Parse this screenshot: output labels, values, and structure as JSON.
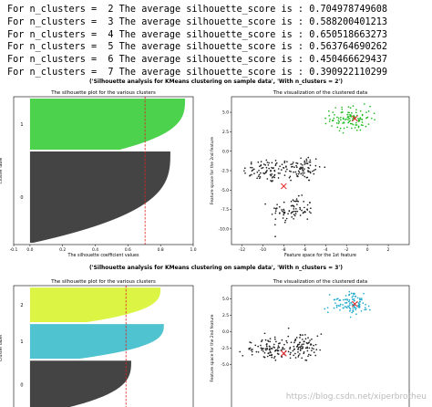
{
  "log_lines": [
    "For n_clusters =  2 The average silhouette_score is : 0.704978749608",
    "For n_clusters =  3 The average silhouette_score is : 0.588200401213",
    "For n_clusters =  4 The average silhouette_score is : 0.650518663273",
    "For n_clusters =  5 The average silhouette_score is : 0.563764690262",
    "For n_clusters =  6 The average silhouette_score is : 0.450466629437",
    "For n_clusters =  7 The average silhouette_score is : 0.390922110299"
  ],
  "watermark": "https://blog.csdn.net/xiperbrotheu",
  "chart_data": [
    {
      "type": "bar",
      "subtype": "silhouette",
      "suptitle": "('Silhouette analysis for KMeans clustering on sample data', 'With n_clusters = 2')",
      "title": "The silhouette plot for the various clusters",
      "xlabel": "The silhouette coefficient values",
      "ylabel": "Cluster label",
      "xlim": [
        -0.1,
        1.0
      ],
      "xticks": [
        -0.1,
        0.0,
        0.2,
        0.4,
        0.6,
        0.8,
        1.0
      ],
      "xtick_labels": [
        "-0.1",
        "0.0",
        "0.2",
        "0.4",
        "0.6",
        "0.8",
        "1.0"
      ],
      "average_score": 0.705,
      "clusters": [
        {
          "label": "0",
          "color": "#444444",
          "size": 500,
          "max": 0.86,
          "min": 0.02
        },
        {
          "label": "1",
          "color": "#4cd24c",
          "size": 280,
          "max": 0.95,
          "min": 0.55
        }
      ]
    },
    {
      "type": "scatter",
      "title": "The visualization of the clustered data",
      "xlabel": "Feature space for the 1st feature",
      "ylabel": "Feature space for the 2nd feature",
      "xlim": [
        -13,
        4
      ],
      "ylim": [
        -12,
        7
      ],
      "xticks": [
        -12,
        -10,
        -8,
        -6,
        -4,
        -2,
        0,
        2
      ],
      "yticks": [
        -10.0,
        -7.5,
        -5.0,
        -2.5,
        0.0,
        2.5,
        5.0
      ],
      "ytick_labels": [
        "-10.0",
        "-7.5",
        "-5.0",
        "-2.5",
        "0.0",
        "2.5",
        "5.0"
      ],
      "groups": [
        {
          "name": "",
          "color": "#222222",
          "n": 240,
          "blobs": [
            {
              "cx": -9.5,
              "cy": -2.5,
              "sx": 1.5,
              "sy": 1.0
            },
            {
              "cx": -6.3,
              "cy": -2.2,
              "sx": 1.2,
              "sy": 1.1
            },
            {
              "cx": -7.2,
              "cy": -7.6,
              "sx": 1.3,
              "sy": 1.0
            }
          ]
        },
        {
          "name": "",
          "color": "#22bb22",
          "n": 110,
          "blobs": [
            {
              "cx": -1.6,
              "cy": 4.2,
              "sx": 1.2,
              "sy": 1.0
            }
          ]
        }
      ],
      "centers": [
        {
          "x": -8.0,
          "y": -4.5
        },
        {
          "x": -1.2,
          "y": 4.2
        }
      ]
    },
    {
      "type": "bar",
      "subtype": "silhouette",
      "suptitle": "('Silhouette analysis for KMeans clustering on sample data', 'With n_clusters = 3')",
      "title": "The silhouette plot for the various clusters",
      "xlabel": "",
      "ylabel": "Cluster label",
      "xlim": [
        -0.1,
        1.0
      ],
      "average_score": 0.588,
      "clusters": [
        {
          "label": "0",
          "color": "#444444",
          "size": 250,
          "max": 0.62,
          "min": 0.2
        },
        {
          "label": "1",
          "color": "#4fc3d0",
          "size": 180,
          "max": 0.82,
          "min": 0.3
        },
        {
          "label": "2",
          "color": "#dcf545",
          "size": 180,
          "max": 0.8,
          "min": 0.35
        }
      ]
    },
    {
      "type": "scatter",
      "title": "The visualization of the clustered data",
      "xlabel": "",
      "ylabel": "Feature space for the 2nd feature",
      "xlim": [
        -13,
        4
      ],
      "ylim": [
        -12,
        7
      ],
      "yticks": [
        -5.0,
        -2.5,
        0.0,
        2.5,
        5.0
      ],
      "ytick_labels": [
        "-5.0",
        "-2.5",
        "0.0",
        "2.5",
        "5.0"
      ],
      "groups": [
        {
          "name": "",
          "color": "#222222",
          "n": 180,
          "blobs": [
            {
              "cx": -9.5,
              "cy": -2.7,
              "sx": 1.5,
              "sy": 1.0
            },
            {
              "cx": -6.3,
              "cy": -2.2,
              "sx": 1.2,
              "sy": 1.1
            }
          ]
        },
        {
          "name": "",
          "color": "#22aacc",
          "n": 110,
          "blobs": [
            {
              "cx": -1.6,
              "cy": 4.2,
              "sx": 1.2,
              "sy": 1.0
            }
          ]
        }
      ],
      "centers": [
        {
          "x": -8.0,
          "y": -3.3
        },
        {
          "x": -1.2,
          "y": 4.2
        }
      ]
    }
  ]
}
